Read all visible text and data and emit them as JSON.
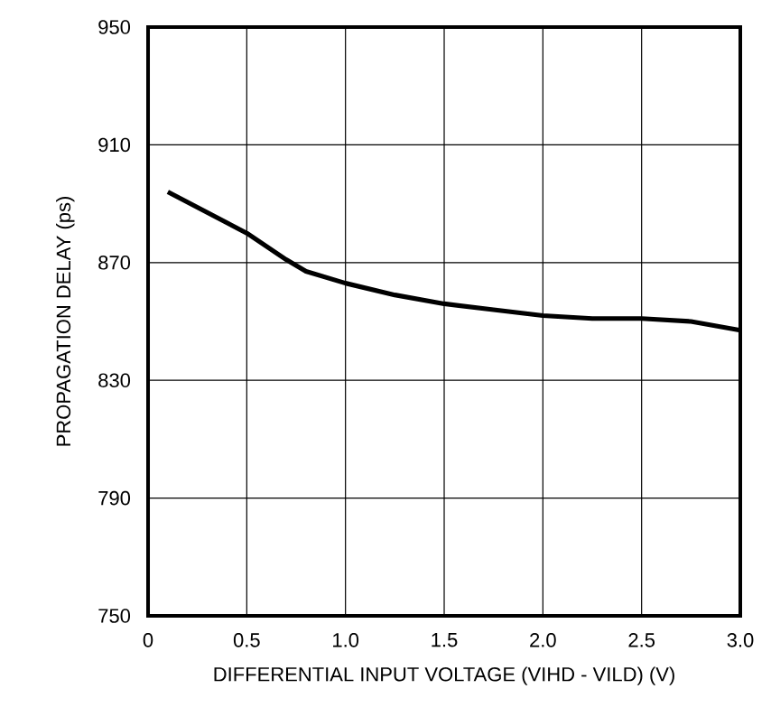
{
  "chart_data": {
    "type": "line",
    "xlabel": "DIFFERENTIAL INPUT VOLTAGE (VIHD - VILD) (V)",
    "ylabel": "PROPAGATION DELAY (ps)",
    "x": [
      0.1,
      0.3,
      0.5,
      0.7,
      0.8,
      1.0,
      1.25,
      1.5,
      1.75,
      2.0,
      2.25,
      2.5,
      2.75,
      3.0
    ],
    "series": [
      {
        "color": "#000000",
        "values": [
          894,
          887,
          880,
          871,
          867,
          863,
          859,
          856,
          854,
          852,
          851,
          851,
          850,
          847
        ]
      }
    ],
    "xlim": [
      0,
      3.0
    ],
    "ylim": [
      750,
      950
    ],
    "xticks": [
      0,
      0.5,
      {
        "value": 1.0,
        "label": "1.0"
      },
      1.5,
      {
        "value": 2.0,
        "label": "2.0"
      },
      2.5,
      {
        "value": 3.0,
        "label": "3.0"
      }
    ],
    "yticks": [
      750,
      790,
      830,
      870,
      910,
      950
    ],
    "grid": true,
    "marker": "none",
    "line_style": "solid"
  }
}
